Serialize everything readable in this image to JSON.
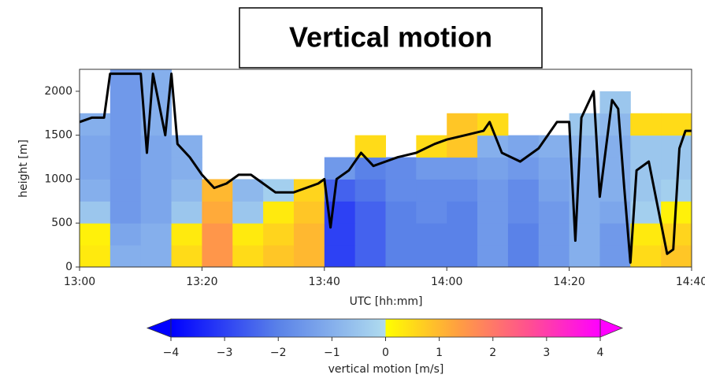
{
  "chart_data": {
    "type": "heatmap",
    "title": "Vertical motion",
    "xlabel": "UTC [hh:mm]",
    "ylabel": "height [m]",
    "colorbar_label": "vertical motion [m/s]",
    "xlim": [
      "13:00",
      "14:40"
    ],
    "ylim": [
      0,
      2250
    ],
    "xticks": [
      "13:00",
      "13:20",
      "13:40",
      "14:00",
      "14:20",
      "14:40"
    ],
    "yticks": [
      0,
      500,
      1000,
      1500,
      2000
    ],
    "zlim": [
      -4,
      4
    ],
    "zticks": [
      {
        "value": -4,
        "label": "−4"
      },
      {
        "value": -3,
        "label": "−3"
      },
      {
        "value": -2,
        "label": "−2"
      },
      {
        "value": -1,
        "label": "−1"
      },
      0,
      1,
      2,
      3,
      4
    ],
    "colors_negative": [
      "#0000ff",
      "#5a82e8",
      "#b0dcef"
    ],
    "colors_positive": [
      "#ffff00",
      "#ffa040",
      "#ff5090",
      "#ff00ff"
    ],
    "xbins": [
      "13:00",
      "13:05",
      "13:10",
      "13:15",
      "13:20",
      "13:25",
      "13:30",
      "13:35",
      "13:40",
      "13:45",
      "13:50",
      "13:55",
      "14:00",
      "14:05",
      "14:10",
      "14:15",
      "14:20",
      "14:25",
      "14:30",
      "14:35",
      "14:40"
    ],
    "ybins": [
      0,
      250,
      500,
      750,
      1000,
      1250,
      1500,
      1750,
      2000,
      2250
    ],
    "z": [
      [
        0.3,
        -1,
        -1,
        0.5,
        1.5,
        0.5,
        0.8,
        1,
        -3,
        -2.5,
        -2,
        -2,
        -2,
        -1.5,
        -2,
        -1.5,
        -1,
        -1.5,
        0.5,
        0.8
      ],
      [
        0.2,
        -1.2,
        -1,
        0.3,
        1.5,
        0.3,
        0.6,
        1,
        -3,
        -2.5,
        -2,
        -2,
        -2,
        -1.5,
        -2,
        -1.5,
        -1,
        -1.5,
        0.3,
        0.6
      ],
      [
        -0.5,
        -1.5,
        -1.2,
        -0.5,
        1.2,
        -0.5,
        0.3,
        0.8,
        -3,
        -2.5,
        -2,
        -1.8,
        -2,
        -1.5,
        -1.8,
        -1.5,
        -1,
        -1.2,
        -0.3,
        0.2
      ],
      [
        -1,
        -1.5,
        -1.2,
        -0.8,
        1,
        -0.8,
        -0.3,
        0.6,
        -2.5,
        -2.2,
        -1.8,
        -1.8,
        -1.8,
        -1.5,
        -1.8,
        -1.3,
        -1,
        -1,
        -0.5,
        -0.3
      ],
      [
        -1.2,
        -1.5,
        -1.2,
        -1,
        null,
        null,
        null,
        null,
        -1.5,
        -2,
        -1.8,
        -1.5,
        -1.5,
        -1.3,
        -1.5,
        -1.2,
        -1,
        -1,
        -0.5,
        -0.5
      ],
      [
        -1.2,
        -1.5,
        -1.2,
        -1,
        null,
        null,
        null,
        null,
        null,
        0.5,
        null,
        0.5,
        0.8,
        -1,
        -1.2,
        -1,
        -0.8,
        -1,
        -0.5,
        -0.5
      ],
      [
        -1,
        -1.5,
        -1,
        null,
        null,
        null,
        null,
        null,
        null,
        null,
        null,
        null,
        0.8,
        0.5,
        null,
        null,
        -0.5,
        -0.8,
        0.5,
        0.5
      ],
      [
        null,
        -1.5,
        -1,
        null,
        null,
        null,
        null,
        null,
        null,
        null,
        null,
        null,
        null,
        null,
        null,
        null,
        null,
        -0.5,
        null,
        null
      ],
      [
        null,
        -1.5,
        -1,
        null,
        null,
        null,
        null,
        null,
        null,
        null,
        null,
        null,
        null,
        null,
        null,
        null,
        null,
        null,
        null,
        null
      ]
    ],
    "line": {
      "color": "#000000",
      "x": [
        "13:00",
        "13:02",
        "13:04",
        "13:05",
        "13:07",
        "13:10",
        "13:11",
        "13:12",
        "13:14",
        "13:15",
        "13:16",
        "13:18",
        "13:20",
        "13:22",
        "13:24",
        "13:26",
        "13:28",
        "13:30",
        "13:32",
        "13:35",
        "13:37",
        "13:39",
        "13:40",
        "13:41",
        "13:42",
        "13:44",
        "13:46",
        "13:48",
        "13:50",
        "13:52",
        "13:55",
        "13:58",
        "14:00",
        "14:03",
        "14:06",
        "14:07",
        "14:09",
        "14:12",
        "14:15",
        "14:18",
        "14:20",
        "14:21",
        "14:22",
        "14:24",
        "14:25",
        "14:27",
        "14:28",
        "14:29",
        "14:30",
        "14:31",
        "14:33",
        "14:35",
        "14:36",
        "14:37",
        "14:38",
        "14:39",
        "14:40"
      ],
      "y": [
        1650,
        1700,
        1700,
        2200,
        2200,
        2200,
        1300,
        2200,
        1500,
        2200,
        1400,
        1250,
        1050,
        900,
        950,
        1050,
        1050,
        950,
        850,
        850,
        900,
        950,
        1000,
        450,
        1000,
        1100,
        1300,
        1150,
        1200,
        1250,
        1300,
        1400,
        1450,
        1500,
        1550,
        1650,
        1300,
        1200,
        1350,
        1650,
        1650,
        300,
        1700,
        2000,
        800,
        1900,
        1800,
        900,
        50,
        1100,
        1200,
        500,
        150,
        200,
        1350,
        1550,
        1550
      ]
    }
  }
}
